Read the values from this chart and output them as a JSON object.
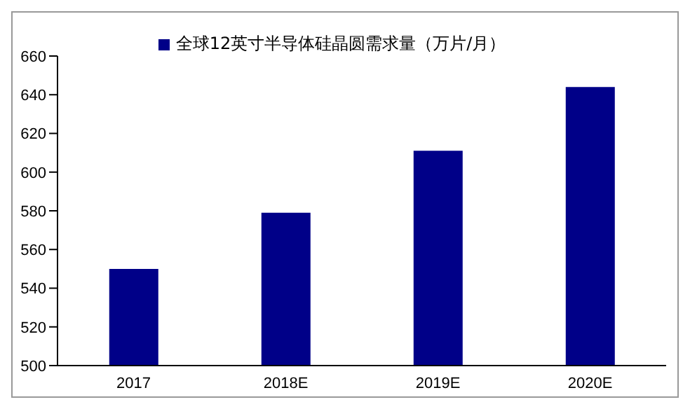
{
  "chart_data": {
    "type": "bar",
    "categories": [
      "2017",
      "2018E",
      "2019E",
      "2020E"
    ],
    "series": [
      {
        "name": "全球12英寸半导体硅晶圆需求量（万片/月）",
        "color": "#000088",
        "values": [
          550,
          579,
          611,
          644
        ]
      }
    ],
    "ylim": [
      500,
      660
    ],
    "yticks": [
      500,
      520,
      540,
      560,
      580,
      600,
      620,
      640,
      660
    ],
    "grid": false,
    "legend": "top"
  }
}
